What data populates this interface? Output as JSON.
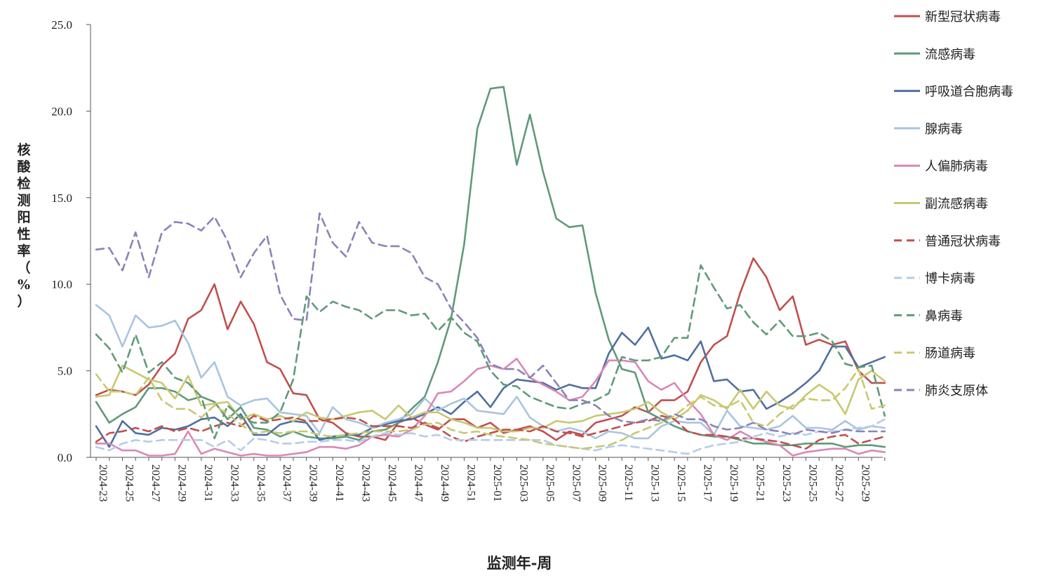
{
  "chart_data": {
    "type": "line",
    "ylabel": "核酸检测阳性率（%）",
    "xlabel": "监测年-周",
    "ylim": [
      0,
      25
    ],
    "yticks": [
      "0.0",
      "5.0",
      "10.0",
      "15.0",
      "20.0",
      "25.0"
    ],
    "grid": false,
    "legend_position": "right",
    "tick_labels": [
      "2024-23",
      "2024-25",
      "2024-27",
      "2024-29",
      "2024-31",
      "2024-33",
      "2024-35",
      "2024-37",
      "2024-39",
      "2024-41",
      "2024-43",
      "2024-45",
      "2024-47",
      "2024-49",
      "2024-51",
      "2025-01",
      "2025-03",
      "2025-05",
      "2025-07",
      "2025-09",
      "2025-11",
      "2025-13",
      "2025-15",
      "2025-17",
      "2025-19",
      "2025-21",
      "2025-23",
      "2025-25",
      "2025-27",
      "2025-29"
    ],
    "categories": [
      "2024-23",
      "2024-24",
      "2024-25",
      "2024-26",
      "2024-27",
      "2024-28",
      "2024-29",
      "2024-30",
      "2024-31",
      "2024-32",
      "2024-33",
      "2024-34",
      "2024-35",
      "2024-36",
      "2024-37",
      "2024-38",
      "2024-39",
      "2024-40",
      "2024-41",
      "2024-42",
      "2024-43",
      "2024-44",
      "2024-45",
      "2024-46",
      "2024-47",
      "2024-48",
      "2024-49",
      "2024-50",
      "2024-51",
      "2024-52",
      "2025-01",
      "2025-02",
      "2025-03",
      "2025-04",
      "2025-05",
      "2025-06",
      "2025-07",
      "2025-08",
      "2025-09",
      "2025-10",
      "2025-11",
      "2025-12",
      "2025-13",
      "2025-14",
      "2025-15",
      "2025-16",
      "2025-17",
      "2025-18",
      "2025-19",
      "2025-20",
      "2025-21",
      "2025-22",
      "2025-23",
      "2025-24",
      "2025-25",
      "2025-26",
      "2025-27",
      "2025-28",
      "2025-29",
      "2025-30",
      "2025-31"
    ],
    "series": [
      {
        "name": "新型冠状病毒",
        "color": "#c0504d",
        "dash": false,
        "values": [
          3.6,
          3.9,
          3.8,
          3.6,
          4.2,
          5.3,
          6.0,
          8.0,
          8.5,
          10.0,
          7.4,
          9.0,
          7.7,
          5.5,
          5.1,
          3.7,
          3.6,
          2.2,
          2.0,
          1.4,
          1.2,
          1.2,
          1.0,
          2.0,
          2.3,
          1.9,
          1.6,
          2.2,
          2.2,
          1.7,
          2.0,
          1.4,
          1.6,
          1.8,
          1.5,
          1.0,
          1.5,
          1.3,
          2.0,
          2.2,
          2.4,
          2.9,
          2.6,
          3.3,
          3.3,
          3.8,
          5.5,
          6.5,
          7.0,
          9.5,
          11.5,
          10.4,
          8.5,
          9.3,
          6.5,
          6.8,
          6.5,
          6.7,
          5.0,
          4.3,
          4.3
        ]
      },
      {
        "name": "流感病毒",
        "color": "#5f9a7a",
        "dash": false,
        "values": [
          3.2,
          2.0,
          2.5,
          2.9,
          4.0,
          4.0,
          3.8,
          3.3,
          3.5,
          3.2,
          2.2,
          2.9,
          1.7,
          1.6,
          1.2,
          1.5,
          1.2,
          1.1,
          1.1,
          1.2,
          1.0,
          1.5,
          1.6,
          2.0,
          2.8,
          3.5,
          5.5,
          8.0,
          12.3,
          19.0,
          21.3,
          21.4,
          16.9,
          19.8,
          16.5,
          13.8,
          13.3,
          13.4,
          9.5,
          6.8,
          5.1,
          4.9,
          2.6,
          2.2,
          1.8,
          1.5,
          1.3,
          1.2,
          1.2,
          1.0,
          0.8,
          0.8,
          0.7,
          0.7,
          0.8,
          0.8,
          0.8,
          0.6,
          0.7,
          0.7,
          0.6
        ]
      },
      {
        "name": "呼吸道合胞病毒",
        "color": "#4f6fa0",
        "dash": false,
        "values": [
          1.8,
          0.6,
          2.1,
          1.4,
          1.3,
          1.7,
          1.6,
          1.8,
          2.2,
          2.3,
          1.8,
          2.5,
          1.3,
          1.3,
          1.9,
          2.1,
          2.0,
          1.0,
          1.2,
          1.3,
          1.3,
          1.7,
          1.9,
          2.1,
          2.2,
          2.5,
          2.9,
          2.5,
          3.2,
          3.8,
          2.9,
          4.0,
          4.5,
          4.4,
          4.3,
          3.9,
          4.2,
          4.0,
          4.0,
          6.0,
          7.2,
          6.5,
          7.5,
          5.7,
          5.9,
          5.6,
          6.7,
          4.4,
          4.5,
          3.8,
          3.9,
          2.8,
          3.2,
          3.7,
          4.3,
          5.0,
          6.4,
          6.4,
          5.2,
          5.5,
          5.8
        ]
      },
      {
        "name": "腺病毒",
        "color": "#a9c4e0",
        "dash": false,
        "values": [
          8.8,
          8.2,
          6.4,
          8.2,
          7.5,
          7.6,
          7.9,
          6.6,
          4.6,
          5.5,
          3.5,
          3.0,
          3.3,
          3.4,
          2.6,
          2.5,
          2.4,
          1.4,
          2.9,
          2.2,
          2.0,
          1.7,
          2.0,
          2.2,
          2.5,
          3.4,
          2.7,
          3.1,
          3.4,
          2.7,
          2.6,
          2.5,
          3.5,
          2.3,
          1.8,
          1.5,
          1.7,
          1.5,
          1.1,
          1.5,
          1.4,
          1.1,
          1.1,
          1.8,
          2.1,
          2.0,
          2.0,
          1.3,
          2.7,
          1.8,
          1.7,
          1.6,
          1.8,
          2.4,
          1.7,
          1.7,
          1.6,
          2.1,
          1.6,
          1.8,
          1.7
        ]
      },
      {
        "name": "人偏肺病毒",
        "color": "#d988b5",
        "dash": false,
        "values": [
          0.8,
          0.8,
          0.4,
          0.4,
          0.1,
          0.1,
          0.2,
          1.5,
          0.2,
          0.5,
          0.3,
          0.1,
          0.2,
          0.1,
          0.1,
          0.2,
          0.3,
          0.6,
          0.6,
          0.5,
          0.7,
          1.2,
          1.3,
          1.2,
          1.6,
          2.4,
          3.7,
          3.8,
          4.4,
          5.1,
          5.3,
          5.1,
          5.7,
          4.6,
          4.2,
          3.8,
          3.3,
          3.5,
          4.4,
          5.6,
          5.6,
          5.5,
          4.4,
          3.9,
          4.3,
          3.3,
          2.5,
          1.3,
          1.0,
          1.5,
          1.1,
          0.9,
          0.7,
          0.1,
          0.3,
          0.4,
          0.5,
          0.5,
          0.2,
          0.4,
          0.3
        ]
      },
      {
        "name": "副流感病毒",
        "color": "#c8c870",
        "dash": false,
        "values": [
          3.5,
          3.6,
          5.3,
          4.9,
          4.5,
          4.3,
          3.4,
          4.7,
          3.0,
          3.1,
          3.2,
          2.2,
          2.5,
          2.2,
          2.4,
          2.1,
          2.6,
          2.3,
          2.2,
          2.4,
          2.6,
          2.7,
          2.2,
          3.0,
          2.3,
          2.6,
          2.6,
          2.2,
          2.0,
          1.7,
          1.7,
          1.5,
          1.5,
          1.7,
          1.7,
          2.1,
          2.0,
          2.1,
          2.4,
          2.5,
          2.6,
          2.8,
          3.2,
          2.6,
          2.2,
          2.7,
          3.6,
          3.3,
          2.8,
          3.9,
          2.8,
          3.8,
          3.0,
          2.8,
          3.6,
          4.2,
          3.7,
          2.5,
          4.5,
          5.0,
          4.4
        ]
      },
      {
        "name": "普通冠状病毒",
        "color": "#c0504d",
        "dash": true,
        "values": [
          0.9,
          1.4,
          1.5,
          1.7,
          1.5,
          1.8,
          1.5,
          1.7,
          1.5,
          1.8,
          2.0,
          1.8,
          2.4,
          2.1,
          2.2,
          2.3,
          2.1,
          2.1,
          2.2,
          2.3,
          2.2,
          1.8,
          1.8,
          1.8,
          1.7,
          2.0,
          1.7,
          1.2,
          0.9,
          1.2,
          1.4,
          1.6,
          1.6,
          1.5,
          1.8,
          1.5,
          1.4,
          1.2,
          1.4,
          1.6,
          1.8,
          2.0,
          2.1,
          2.4,
          2.2,
          1.5,
          1.3,
          1.3,
          1.2,
          1.1,
          1.1,
          1.0,
          0.9,
          0.7,
          0.5,
          1.0,
          1.2,
          1.3,
          0.8,
          1.0,
          1.2
        ]
      },
      {
        "name": "博卡病毒",
        "color": "#b4cde8",
        "dash": true,
        "values": [
          0.6,
          0.4,
          0.8,
          1.0,
          0.9,
          1.0,
          1.0,
          1.0,
          1.0,
          0.6,
          1.0,
          0.4,
          1.1,
          1.0,
          0.8,
          0.8,
          0.9,
          0.9,
          1.0,
          1.0,
          0.9,
          1.2,
          1.4,
          1.3,
          1.4,
          1.2,
          1.3,
          1.0,
          1.0,
          1.0,
          1.0,
          1.0,
          1.0,
          1.0,
          1.0,
          0.7,
          0.6,
          0.5,
          0.4,
          0.6,
          0.7,
          0.6,
          0.5,
          0.4,
          0.3,
          0.2,
          0.5,
          0.7,
          0.8,
          0.9,
          1.2,
          1.4,
          1.2,
          1.4,
          1.3,
          1.5,
          1.5,
          1.6,
          1.7,
          1.8,
          2.2
        ]
      },
      {
        "name": "鼻病毒",
        "color": "#5f9a7a",
        "dash": true,
        "values": [
          7.1,
          6.3,
          4.9,
          7.1,
          4.9,
          5.5,
          4.6,
          4.3,
          3.5,
          1.1,
          3.0,
          2.3,
          2.0,
          2.0,
          2.6,
          4.5,
          9.3,
          8.4,
          9.0,
          8.7,
          8.5,
          8.0,
          8.5,
          8.5,
          8.2,
          8.3,
          7.3,
          8.1,
          7.2,
          6.7,
          5.0,
          4.2,
          4.1,
          3.5,
          3.2,
          2.9,
          2.8,
          3.1,
          3.3,
          3.7,
          5.8,
          5.6,
          5.6,
          5.8,
          6.9,
          6.9,
          11.1,
          9.8,
          8.6,
          8.8,
          7.8,
          7.1,
          7.9,
          7.0,
          7.0,
          7.2,
          6.7,
          5.4,
          5.2,
          5.3,
          2.4
        ]
      },
      {
        "name": "肠道病毒",
        "color": "#c8c870",
        "dash": true,
        "values": [
          4.8,
          3.8,
          3.8,
          3.6,
          4.6,
          3.3,
          2.8,
          2.8,
          2.3,
          3.0,
          2.5,
          1.9,
          1.4,
          1.5,
          1.4,
          1.5,
          1.5,
          1.3,
          1.2,
          1.3,
          1.4,
          1.5,
          1.5,
          1.5,
          1.6,
          1.9,
          2.0,
          1.6,
          1.4,
          1.5,
          1.3,
          1.2,
          1.1,
          1.0,
          0.8,
          0.7,
          0.6,
          0.5,
          0.6,
          0.7,
          1.0,
          1.4,
          1.7,
          2.0,
          2.4,
          3.0,
          3.5,
          3.0,
          2.9,
          3.3,
          2.0,
          1.8,
          2.5,
          3.0,
          3.4,
          3.3,
          3.3,
          4.0,
          5.1,
          2.8,
          3.0
        ]
      },
      {
        "name": "肺炎支原体",
        "color": "#8c82b8",
        "dash": true,
        "values": [
          12.0,
          12.1,
          10.8,
          13.0,
          10.4,
          13.0,
          13.6,
          13.5,
          13.1,
          13.9,
          12.5,
          10.4,
          11.8,
          12.8,
          9.4,
          8.0,
          7.9,
          14.1,
          12.4,
          11.6,
          13.6,
          12.4,
          12.2,
          12.2,
          11.8,
          10.4,
          10.0,
          8.6,
          7.8,
          6.9,
          5.4,
          5.1,
          5.1,
          4.6,
          5.3,
          4.3,
          3.3,
          3.3,
          3.0,
          2.4,
          2.1,
          2.0,
          2.2,
          2.1,
          2.5,
          2.2,
          2.2,
          1.8,
          1.6,
          1.7,
          2.0,
          1.6,
          1.5,
          1.3,
          1.6,
          1.5,
          1.4,
          1.6,
          1.5,
          1.5,
          1.5
        ]
      }
    ]
  }
}
